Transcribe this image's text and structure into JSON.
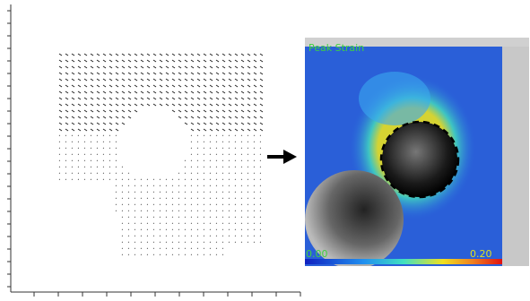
{
  "strain_map": {
    "title": "Peak Strain",
    "colorbar": {
      "min_label": "0.00",
      "max_label": "0.20"
    }
  }
}
